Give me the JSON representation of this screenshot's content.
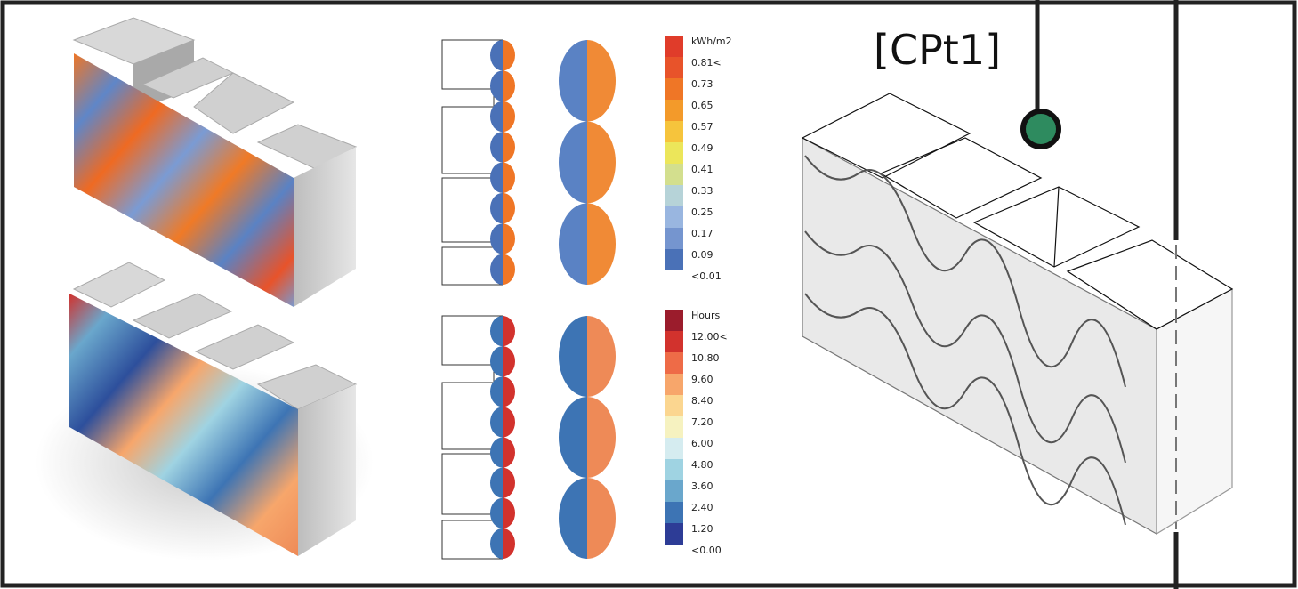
{
  "label": "[CPt1]",
  "legends": [
    {
      "title": "kWh/m2",
      "labels": [
        "0.81<",
        "0.73",
        "0.65",
        "0.57",
        "0.49",
        "0.41",
        "0.33",
        "0.25",
        "0.17",
        "0.09",
        "<0.01"
      ],
      "colors": [
        "#e03c2a",
        "#e8532a",
        "#ef7626",
        "#f39a2a",
        "#f6c43c",
        "#ece65a",
        "#d3df8e",
        "#b6d3d8",
        "#99b6e0",
        "#7595cf",
        "#4a71b7"
      ]
    },
    {
      "title": "Hours",
      "labels": [
        "12.00<",
        "10.80",
        "9.60",
        "8.40",
        "7.20",
        "6.00",
        "4.80",
        "3.60",
        "2.40",
        "1.20",
        "<0.00"
      ],
      "colors": [
        "#9b1c2c",
        "#d2322d",
        "#ee6b47",
        "#f7a66b",
        "#fbd690",
        "#f6f2c0",
        "#d5ecf0",
        "#9fd3e2",
        "#6aa7cc",
        "#3d74b4",
        "#2d3c96"
      ]
    }
  ]
}
